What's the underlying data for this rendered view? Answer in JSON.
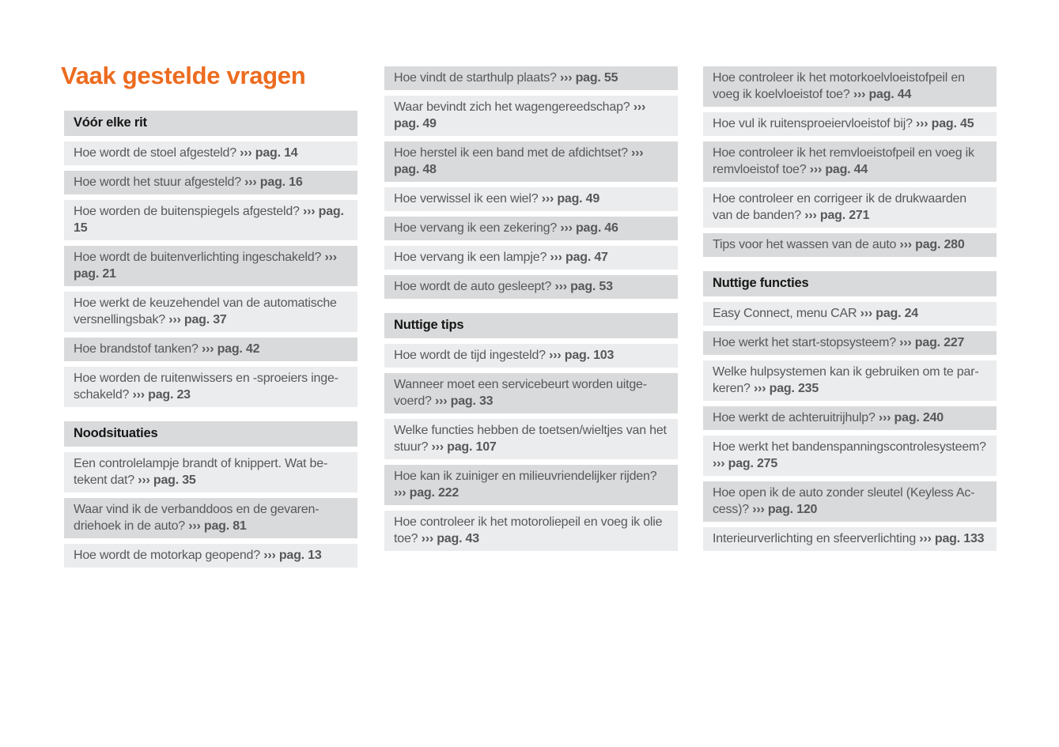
{
  "page_title": "Vaak gestelde vragen",
  "accent_color": "#ec6b1f",
  "band_dark_color": "#d9dadb",
  "band_light_color": "#ebeced",
  "text_color": "#57585a",
  "arrow_glyph": "›››",
  "page_prefix": "pag.",
  "columns": [
    {
      "blocks": [
        {
          "type": "header",
          "text": "Vóór elke rit"
        },
        {
          "type": "item",
          "q": "Hoe wordt de stoel afgesteld?",
          "page": "14"
        },
        {
          "type": "item",
          "q": "Hoe wordt het stuur afgesteld?",
          "page": "16"
        },
        {
          "type": "item",
          "q": "Hoe worden de buitenspiegels afgesteld?",
          "page": "15"
        },
        {
          "type": "item",
          "q": "Hoe wordt de buitenverlichting ingeschakeld?",
          "page": "21"
        },
        {
          "type": "item",
          "q": "Hoe werkt de keuzehendel van de automatische versnellingsbak?",
          "page": "37"
        },
        {
          "type": "item",
          "q": "Hoe brandstof tanken?",
          "page": "42"
        },
        {
          "type": "item",
          "q": "Hoe worden de ruitenwissers en -sproeiers inge­schakeld?",
          "page": "23"
        },
        {
          "type": "header",
          "text": "Noodsituaties"
        },
        {
          "type": "item",
          "q": "Een controlelampje brandt of knippert. Wat be­tekent dat?",
          "page": "35"
        },
        {
          "type": "item",
          "q": "Waar vind ik de verbanddoos en de gevaren­driehoek in de auto?",
          "page": "81"
        },
        {
          "type": "item",
          "q": "Hoe wordt de motorkap geopend?",
          "page": "13"
        }
      ]
    },
    {
      "blocks": [
        {
          "type": "item",
          "q": "Hoe vindt de starthulp plaats?",
          "page": "55"
        },
        {
          "type": "item",
          "q": "Waar bevindt zich het wagengereedschap?",
          "page": "49"
        },
        {
          "type": "item",
          "q": "Hoe herstel ik een band met de afdichtset?",
          "page": "48"
        },
        {
          "type": "item",
          "q": "Hoe verwissel ik een wiel?",
          "page": "49"
        },
        {
          "type": "item",
          "q": "Hoe vervang ik een zekering?",
          "page": "46"
        },
        {
          "type": "item",
          "q": "Hoe vervang ik een lampje?",
          "page": "47"
        },
        {
          "type": "item",
          "q": "Hoe wordt de auto gesleept?",
          "page": "53"
        },
        {
          "type": "header",
          "text": "Nuttige tips"
        },
        {
          "type": "item",
          "q": "Hoe wordt de tijd ingesteld?",
          "page": "103"
        },
        {
          "type": "item",
          "q": "Wanneer moet een servicebeurt worden uitge­voerd?",
          "page": "33"
        },
        {
          "type": "item",
          "q": "Welke functies hebben de toetsen/wieltjes van het stuur?",
          "page": "107"
        },
        {
          "type": "item",
          "q": "Hoe kan ik zuiniger en milieuvriendelijker rijden?",
          "page": "222"
        },
        {
          "type": "item",
          "q": "Hoe controleer ik het motoroliepeil en voeg ik olie toe?",
          "page": "43"
        }
      ]
    },
    {
      "blocks": [
        {
          "type": "item",
          "q": "Hoe controleer ik het motorkoelvloeistofpeil en voeg ik koelvloeistof toe?",
          "page": "44"
        },
        {
          "type": "item",
          "q": "Hoe vul ik ruitensproeiervloeistof bij?",
          "page": "45"
        },
        {
          "type": "item",
          "q": "Hoe controleer ik het remvloeistofpeil en voeg ik remvloeistof toe?",
          "page": "44"
        },
        {
          "type": "item",
          "q": "Hoe controleer en corrigeer ik de drukwaarden van de banden?",
          "page": "271"
        },
        {
          "type": "item",
          "q": "Tips voor het wassen van de auto",
          "page": "280"
        },
        {
          "type": "header",
          "text": "Nuttige functies"
        },
        {
          "type": "item",
          "q": "Easy Connect, menu CAR",
          "page": "24"
        },
        {
          "type": "item",
          "q": "Hoe werkt het start-stopsysteem?",
          "page": "227"
        },
        {
          "type": "item",
          "q": "Welke hulpsystemen kan ik gebruiken om te par­keren?",
          "page": "235"
        },
        {
          "type": "item",
          "q": "Hoe werkt de achteruitrijhulp?",
          "page": "240"
        },
        {
          "type": "item",
          "q": "Hoe werkt het bandenspanningscontrolesys­teem?",
          "page": "275"
        },
        {
          "type": "item",
          "q": "Hoe open ik de auto zonder sleutel (Keyless Ac­cess)?",
          "page": "120"
        },
        {
          "type": "item",
          "q": "Interieurverlichting en sfeerverlichting",
          "page": "133"
        }
      ]
    }
  ]
}
